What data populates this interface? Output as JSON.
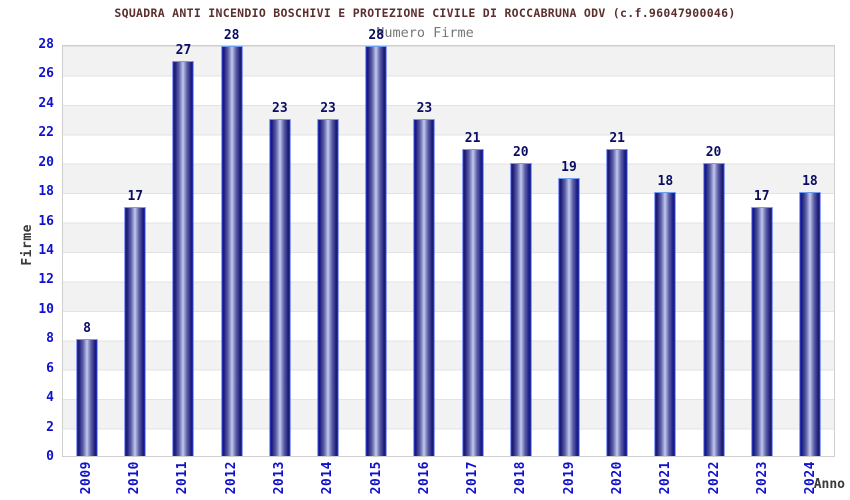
{
  "chart_data": {
    "type": "bar",
    "title": "SQUADRA ANTI INCENDIO BOSCHIVI E PROTEZIONE CIVILE DI ROCCABRUNA ODV (c.f.96047900046)",
    "subtitle": "Numero Firme",
    "xlabel": "Anno",
    "ylabel": "Firme",
    "categories": [
      "2009",
      "2010",
      "2011",
      "2012",
      "2013",
      "2014",
      "2015",
      "2016",
      "2017",
      "2018",
      "2019",
      "2020",
      "2021",
      "2022",
      "2023",
      "2024"
    ],
    "values": [
      8,
      17,
      27,
      28,
      23,
      23,
      28,
      23,
      21,
      20,
      19,
      21,
      18,
      20,
      17,
      18
    ],
    "ylim": [
      0,
      28
    ],
    "ytick_step": 2,
    "grid": "horizontal-bands-alternating",
    "legend": "none",
    "colors": {
      "title": "#5c2e2e",
      "subtitle": "#777777",
      "axis_title": "#3a3a3a",
      "tick_label": "#1111cc",
      "value_label": "#0c0c62",
      "band_gray": "#f2f2f2",
      "gridline": "#e3e3e3",
      "plot_border": "#cfcfcf",
      "bar_border": "#2c49f2",
      "bar_border_top": "#6e9ef3",
      "bar_dark": "#141468",
      "bar_mid": "#5f63ab",
      "bar_light": "#c2c8ea",
      "background": "#ffffff"
    }
  }
}
